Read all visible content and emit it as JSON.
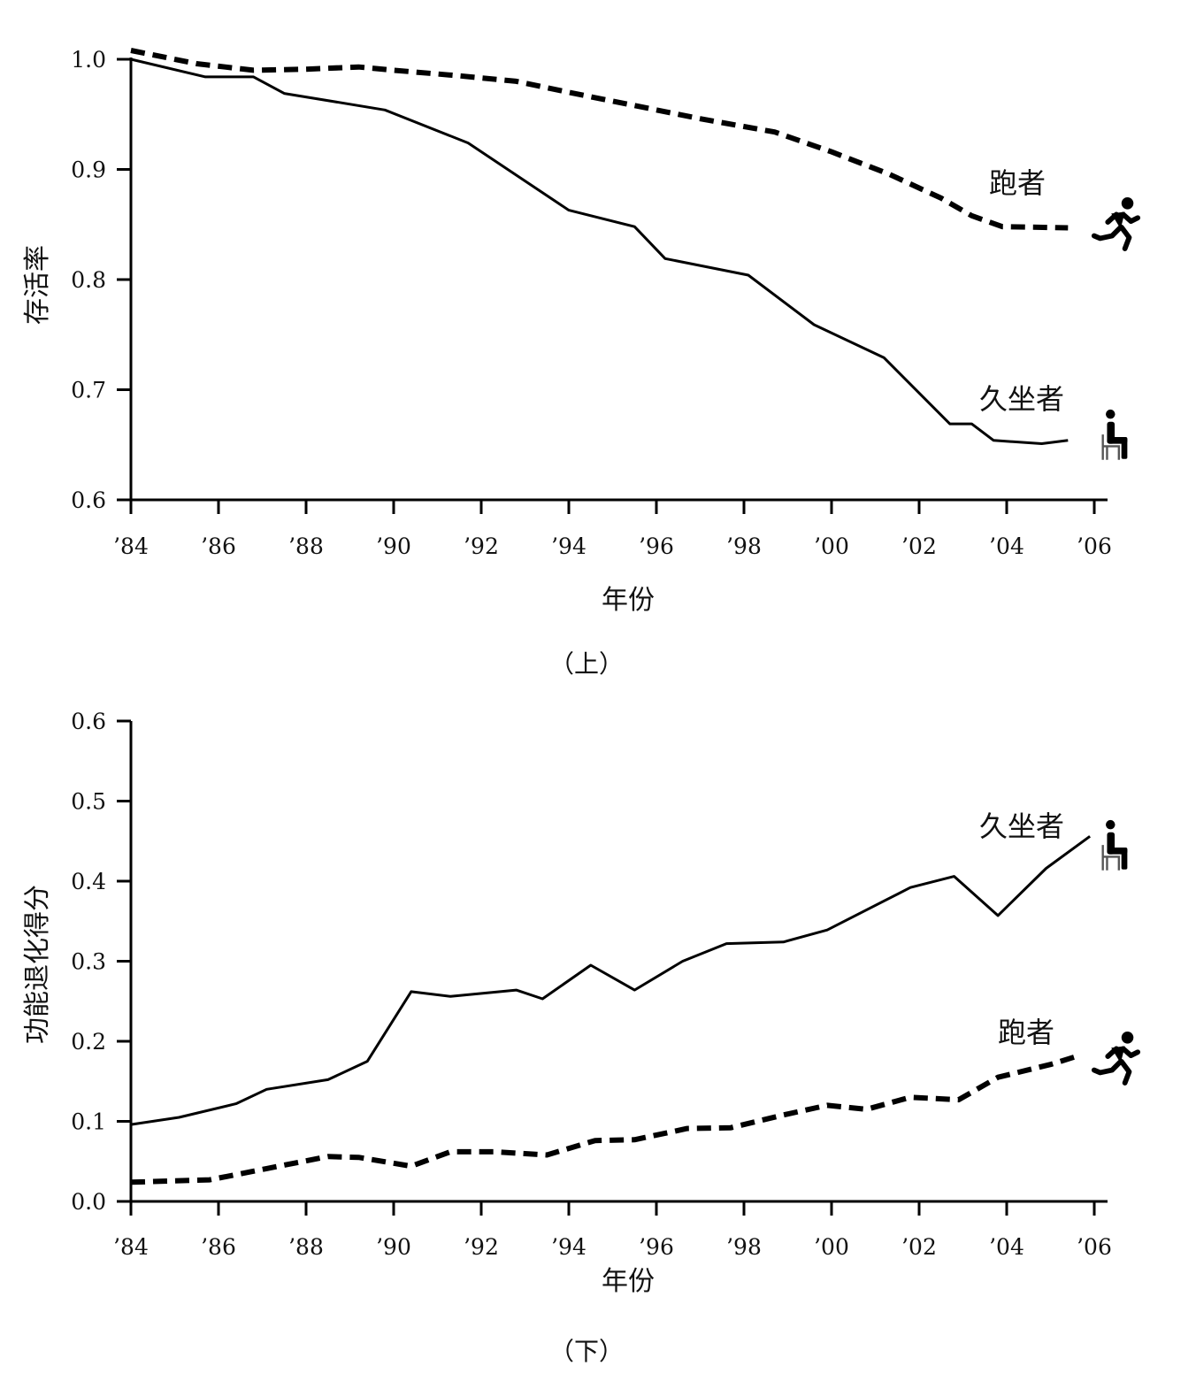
{
  "chart_data": [
    {
      "type": "line",
      "caption": "（上）",
      "xlabel": "年份",
      "ylabel": "存活率",
      "x_tick_labels": [
        "’84",
        "’86",
        "’88",
        "’90",
        "’92",
        "’94",
        "’96",
        "’98",
        "’00",
        "’02",
        "’04",
        "’06"
      ],
      "x_ticks": [
        1984,
        1986,
        1988,
        1990,
        1992,
        1994,
        1996,
        1998,
        2000,
        2002,
        2004,
        2006
      ],
      "xlim": [
        1984,
        2006.3
      ],
      "ylim": [
        0.6,
        1.0
      ],
      "y_ticks": [
        0.6,
        0.7,
        0.8,
        0.9,
        1.0
      ],
      "y_tick_labels": [
        "0.6",
        "0.7",
        "0.8",
        "0.9",
        "1.0"
      ],
      "series": [
        {
          "name": "跑者",
          "style": "dashed",
          "icon": "runner-icon",
          "x": [
            1984.0,
            1985.5,
            1986.8,
            1988.0,
            1989.2,
            1990.0,
            1991.5,
            1992.8,
            1994.0,
            1995.5,
            1997.0,
            1998.7,
            2000.0,
            2001.3,
            2002.5,
            2003.2,
            2003.9,
            2005.4
          ],
          "y": [
            1.008,
            0.996,
            0.99,
            0.991,
            0.993,
            0.99,
            0.985,
            0.98,
            0.97,
            0.958,
            0.946,
            0.934,
            0.916,
            0.896,
            0.874,
            0.858,
            0.848,
            0.847
          ]
        },
        {
          "name": "久坐者",
          "style": "solid",
          "icon": "sitting-person-icon",
          "x": [
            1984.0,
            1985.7,
            1986.8,
            1987.5,
            1989.8,
            1991.7,
            1994.0,
            1995.5,
            1996.2,
            1998.1,
            1999.6,
            2001.2,
            2002.7,
            2003.2,
            2003.7,
            2004.8,
            2005.4
          ],
          "y": [
            1.0,
            0.984,
            0.984,
            0.969,
            0.954,
            0.924,
            0.863,
            0.848,
            0.819,
            0.804,
            0.759,
            0.729,
            0.669,
            0.669,
            0.654,
            0.651,
            0.654
          ]
        }
      ]
    },
    {
      "type": "line",
      "caption": "（下）",
      "xlabel": "年份",
      "ylabel": "功能退化得分",
      "x_tick_labels": [
        "’84",
        "’86",
        "’88",
        "’90",
        "’92",
        "’94",
        "’96",
        "’98",
        "’00",
        "’02",
        "’04",
        "’06"
      ],
      "x_ticks": [
        1984,
        1986,
        1988,
        1990,
        1992,
        1994,
        1996,
        1998,
        2000,
        2002,
        2004,
        2006
      ],
      "xlim": [
        1984,
        2006.3
      ],
      "ylim": [
        0.0,
        0.6
      ],
      "y_ticks": [
        0.0,
        0.1,
        0.2,
        0.3,
        0.4,
        0.5,
        0.6
      ],
      "y_tick_labels": [
        "0.0",
        "0.1",
        "0.2",
        "0.3",
        "0.4",
        "0.5",
        "0.6"
      ],
      "series": [
        {
          "name": "久坐者",
          "style": "solid",
          "icon": "sitting-person-icon",
          "x": [
            1984.0,
            1985.1,
            1986.4,
            1987.1,
            1988.5,
            1989.4,
            1990.4,
            1991.3,
            1992.8,
            1993.4,
            1994.5,
            1995.5,
            1996.6,
            1997.6,
            1998.9,
            1999.9,
            2001.8,
            2002.8,
            2003.8,
            2004.9,
            2005.9
          ],
          "y": [
            0.096,
            0.105,
            0.122,
            0.14,
            0.152,
            0.175,
            0.262,
            0.256,
            0.264,
            0.253,
            0.295,
            0.264,
            0.3,
            0.322,
            0.324,
            0.339,
            0.392,
            0.406,
            0.357,
            0.416,
            0.456
          ]
        },
        {
          "name": "跑者",
          "style": "dashed",
          "icon": "runner-icon",
          "x": [
            1984.0,
            1985.8,
            1987.1,
            1988.5,
            1989.2,
            1990.4,
            1991.3,
            1992.3,
            1993.5,
            1994.6,
            1995.5,
            1996.7,
            1997.7,
            1998.9,
            1999.9,
            2000.8,
            2001.8,
            2002.9,
            2003.8,
            2005.0,
            2005.7
          ],
          "y": [
            0.024,
            0.027,
            0.041,
            0.056,
            0.055,
            0.044,
            0.062,
            0.062,
            0.058,
            0.076,
            0.077,
            0.091,
            0.092,
            0.108,
            0.12,
            0.115,
            0.13,
            0.127,
            0.155,
            0.171,
            0.183
          ]
        }
      ]
    }
  ]
}
